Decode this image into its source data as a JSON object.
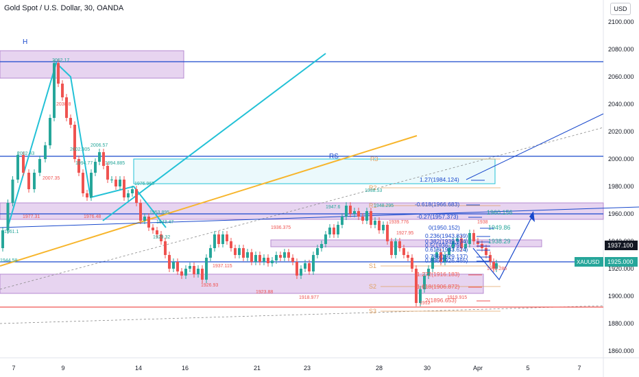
{
  "header": {
    "title": "Gold Spot / U.S. Dollar, 30, OANDA",
    "currency_button": "USD"
  },
  "colors": {
    "up": "#26a69a",
    "down": "#ef5350",
    "blue": "#1848cc",
    "cyan": "#22c1d6",
    "orange": "#f7b52b",
    "purple_zone": "#d7b8e6",
    "tan": "#e0a060"
  },
  "chart_data": {
    "type": "candlestick",
    "symbol": "XAUUSD",
    "ylim": [
      1855,
      2116
    ],
    "y_ticks": [
      1860,
      1880,
      1900,
      1920,
      1940,
      1960,
      1980,
      2000,
      2020,
      2040,
      2060,
      2080,
      2100
    ],
    "y_tick_labels": [
      "1860.000",
      "1880.000",
      "1900.000",
      "1920.000",
      "1940.000",
      "1960.000",
      "1980.000",
      "2000.000",
      "2020.000",
      "2040.000",
      "2060.000",
      "2080.000",
      "2100.000"
    ],
    "x_ticks": [
      {
        "label": "7",
        "t": 20
      },
      {
        "label": "9",
        "t": 92
      },
      {
        "label": "14",
        "t": 202
      },
      {
        "label": "16",
        "t": 270
      },
      {
        "label": "21",
        "t": 375
      },
      {
        "label": "23",
        "t": 448
      },
      {
        "label": "28",
        "t": 553
      },
      {
        "label": "30",
        "t": 623
      },
      {
        "label": "Apr",
        "t": 697
      },
      {
        "label": "5",
        "t": 770
      },
      {
        "label": "7",
        "t": 845
      }
    ],
    "price_path": [
      [
        0,
        1935
      ],
      [
        8,
        1948
      ],
      [
        15,
        1968
      ],
      [
        22,
        1985
      ],
      [
        30,
        2003
      ],
      [
        38,
        1990
      ],
      [
        46,
        1978
      ],
      [
        54,
        1990
      ],
      [
        62,
        2000
      ],
      [
        70,
        2010
      ],
      [
        76,
        2030
      ],
      [
        82,
        2070
      ],
      [
        88,
        2055
      ],
      [
        94,
        2045
      ],
      [
        100,
        2030
      ],
      [
        106,
        2025
      ],
      [
        112,
        2000
      ],
      [
        118,
        1990
      ],
      [
        124,
        1975
      ],
      [
        130,
        1972
      ],
      [
        136,
        1990
      ],
      [
        142,
        1998
      ],
      [
        148,
        2005
      ],
      [
        154,
        1995
      ],
      [
        160,
        1985
      ],
      [
        166,
        1985
      ],
      [
        172,
        1980
      ],
      [
        178,
        1985
      ],
      [
        184,
        1972
      ],
      [
        190,
        1975
      ],
      [
        196,
        1978
      ],
      [
        202,
        1968
      ],
      [
        208,
        1955
      ],
      [
        214,
        1958
      ],
      [
        220,
        1950
      ],
      [
        226,
        1948
      ],
      [
        232,
        1945
      ],
      [
        238,
        1940
      ],
      [
        244,
        1930
      ],
      [
        250,
        1920
      ],
      [
        256,
        1925
      ],
      [
        262,
        1918
      ],
      [
        268,
        1915
      ],
      [
        274,
        1920
      ],
      [
        280,
        1922
      ],
      [
        286,
        1916
      ],
      [
        292,
        1920
      ],
      [
        298,
        1912
      ],
      [
        304,
        1928
      ],
      [
        310,
        1935
      ],
      [
        316,
        1945
      ],
      [
        322,
        1938
      ],
      [
        328,
        1945
      ],
      [
        334,
        1940
      ],
      [
        340,
        1935
      ],
      [
        346,
        1930
      ],
      [
        352,
        1935
      ],
      [
        358,
        1928
      ],
      [
        364,
        1932
      ],
      [
        370,
        1925
      ],
      [
        376,
        1930
      ],
      [
        382,
        1925
      ],
      [
        388,
        1928
      ],
      [
        394,
        1924
      ],
      [
        400,
        1926
      ],
      [
        406,
        1930
      ],
      [
        412,
        1928
      ],
      [
        418,
        1932
      ],
      [
        424,
        1928
      ],
      [
        430,
        1925
      ],
      [
        436,
        1915
      ],
      [
        442,
        1920
      ],
      [
        448,
        1924
      ],
      [
        454,
        1918
      ],
      [
        460,
        1930
      ],
      [
        466,
        1935
      ],
      [
        472,
        1938
      ],
      [
        478,
        1945
      ],
      [
        484,
        1950
      ],
      [
        490,
        1945
      ],
      [
        496,
        1952
      ],
      [
        502,
        1958
      ],
      [
        508,
        1966
      ],
      [
        514,
        1960
      ],
      [
        520,
        1962
      ],
      [
        526,
        1958
      ],
      [
        532,
        1955
      ],
      [
        538,
        1962
      ],
      [
        544,
        1952
      ],
      [
        550,
        1955
      ],
      [
        556,
        1948
      ],
      [
        562,
        1952
      ],
      [
        568,
        1940
      ],
      [
        574,
        1930
      ],
      [
        580,
        1940
      ],
      [
        586,
        1935
      ],
      [
        592,
        1930
      ],
      [
        598,
        1928
      ],
      [
        604,
        1920
      ],
      [
        610,
        1895
      ],
      [
        616,
        1905
      ],
      [
        622,
        1915
      ],
      [
        628,
        1920
      ],
      [
        634,
        1928
      ],
      [
        640,
        1932
      ],
      [
        646,
        1925
      ],
      [
        652,
        1930
      ],
      [
        658,
        1935
      ],
      [
        664,
        1940
      ],
      [
        670,
        1942
      ],
      [
        676,
        1935
      ],
      [
        682,
        1938
      ],
      [
        688,
        1946
      ],
      [
        694,
        1940
      ],
      [
        700,
        1938
      ],
      [
        706,
        1935
      ],
      [
        712,
        1930
      ],
      [
        718,
        1925
      ],
      [
        722,
        1920
      ],
      [
        726,
        1924
      ]
    ],
    "horizontal_lines": [
      {
        "price": 2071,
        "color": "#1848cc"
      },
      {
        "price": 2002,
        "color": "#1848cc"
      },
      {
        "price": 1960,
        "color": "#1848cc"
      },
      {
        "price": 1925,
        "color": "#1848cc"
      },
      {
        "price": 1892,
        "color": "#ef5350"
      }
    ],
    "zones": [
      {
        "t1": 0,
        "t2": 268,
        "p1": 2079,
        "p2": 2059,
        "label": "H"
      },
      {
        "t1": 0,
        "t2": 880,
        "p1": 1968,
        "p2": 1956
      },
      {
        "t1": 0,
        "t2": 705,
        "p1": 1916,
        "p2": 1902
      },
      {
        "t1": 395,
        "t2": 790,
        "p1": 1941,
        "p2": 1936
      },
      {
        "t1": 195,
        "t2": 722,
        "p1": 2000,
        "p2": 1982,
        "label": "RS"
      }
    ],
    "pivot_labels": [
      {
        "label": "R3",
        "t": 540,
        "price": 2000
      },
      {
        "label": "R2",
        "t": 538,
        "price": 1979
      },
      {
        "label": "R1",
        "t": 538,
        "price": 1966
      },
      {
        "label": "S1",
        "t": 538,
        "price": 1922
      },
      {
        "label": "S2",
        "t": 538,
        "price": 1907
      },
      {
        "label": "S3",
        "t": 538,
        "price": 1889
      }
    ],
    "fib_levels": [
      {
        "label": "1.27(1984.124)",
        "t": 612,
        "price": 1985
      },
      {
        "label": "-0.618(1966.683)",
        "t": 605,
        "price": 1967
      },
      {
        "label": "-0.27(1957.373)",
        "t": 608,
        "price": 1958
      },
      {
        "label": "0(1950.152)",
        "t": 625,
        "price": 1950
      },
      {
        "label": "0.236(1943.839)",
        "t": 620,
        "price": 1944
      },
      {
        "label": "0.382(1939.934)",
        "t": 620,
        "price": 1940
      },
      {
        "label": "0.5(1936.779)",
        "t": 620,
        "price": 1937
      },
      {
        "label": "0.618(1933.624)",
        "t": 620,
        "price": 1934
      },
      {
        "label": "0.786(1929.137)",
        "t": 620,
        "price": 1929
      },
      {
        "label": "0.886(1926.465)",
        "t": 620,
        "price": 1926
      },
      {
        "label": "1.272(1916.183)",
        "t": 608,
        "price": 1916
      },
      {
        "label": "1.618(1906.872)",
        "t": 608,
        "price": 1907
      },
      {
        "label": "2(1896.653)",
        "t": 620,
        "price": 1897
      }
    ],
    "level_labels": [
      {
        "label": "1960.156",
        "t": 710,
        "price": 1961
      },
      {
        "label": "1949.86",
        "t": 712,
        "price": 1950
      },
      {
        "label": "1938.29",
        "t": 712,
        "price": 1940
      }
    ],
    "annotations": [
      {
        "label": "2062.17",
        "t": 76,
        "price": 2071
      },
      {
        "label": "2002.43",
        "t": 25,
        "price": 2003
      },
      {
        "label": "2038.8",
        "t": 82,
        "price": 2039
      },
      {
        "label": "2002.305",
        "t": 102,
        "price": 2006
      },
      {
        "label": "1994.77",
        "t": 110,
        "price": 1996
      },
      {
        "label": "2006.57",
        "t": 132,
        "price": 2009
      },
      {
        "label": "1994.885",
        "t": 153,
        "price": 1996
      },
      {
        "label": "2007.35",
        "t": 62,
        "price": 1985
      },
      {
        "label": "1976.965",
        "t": 196,
        "price": 1981
      },
      {
        "label": "1953.895",
        "t": 218,
        "price": 1960
      },
      {
        "label": "1977.31",
        "t": 33,
        "price": 1957
      },
      {
        "label": "1976.48",
        "t": 122,
        "price": 1957
      },
      {
        "label": "1943.47",
        "t": 228,
        "price": 1953
      },
      {
        "label": "1929.32",
        "t": 223,
        "price": 1942
      },
      {
        "label": "1937.115",
        "t": 310,
        "price": 1921
      },
      {
        "label": "1936.375",
        "t": 395,
        "price": 1949
      },
      {
        "label": "1947.6",
        "t": 475,
        "price": 1964
      },
      {
        "label": "1948.295",
        "t": 545,
        "price": 1965
      },
      {
        "label": "1939.776",
        "t": 567,
        "price": 1953
      },
      {
        "label": "1938.53",
        "t": 532,
        "price": 1976
      },
      {
        "label": "1926.93",
        "t": 293,
        "price": 1907
      },
      {
        "label": "1923.88",
        "t": 373,
        "price": 1902
      },
      {
        "label": "1918.977",
        "t": 436,
        "price": 1898
      },
      {
        "label": "1927.95",
        "t": 578,
        "price": 1945
      },
      {
        "label": "1938",
        "t": 696,
        "price": 1953
      },
      {
        "label": "1919.915",
        "t": 652,
        "price": 1898
      },
      {
        "label": "1912",
        "t": 612,
        "price": 1894
      },
      {
        "label": "1944.58",
        "t": 0,
        "price": 1925
      },
      {
        "label": "1961.1",
        "t": 6,
        "price": 1946
      },
      {
        "label": "1912.286",
        "t": 710,
        "price": 1919
      }
    ],
    "price_tags": [
      {
        "label": "1937.100",
        "price": 1937,
        "fill": "#131722",
        "color": "#ffffff"
      },
      {
        "label": "1925.000",
        "price": 1925,
        "fill": "#26a69a",
        "color": "#ffffff",
        "symbol": "XAUUSD"
      }
    ]
  }
}
